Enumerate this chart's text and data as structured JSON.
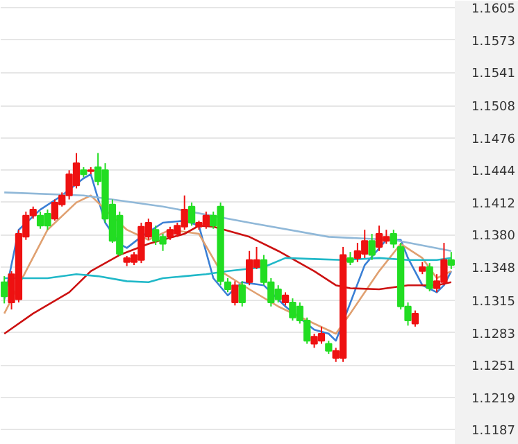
{
  "chart_data": {
    "type": "candlestick",
    "categories": [
      null,
      null,
      null,
      null,
      null,
      null,
      null,
      null,
      null,
      null,
      null,
      null,
      null,
      null,
      null,
      null,
      null,
      null,
      null,
      null,
      null,
      null,
      null,
      null,
      null,
      null,
      null,
      null,
      null,
      null,
      null,
      null,
      null,
      null,
      null,
      null,
      null,
      null,
      null,
      null,
      null,
      null,
      null,
      null,
      null,
      null,
      null,
      null,
      null,
      null,
      null,
      null,
      null,
      null,
      null,
      null,
      null,
      null,
      null,
      null,
      null,
      null,
      null
    ],
    "ohlc": [
      [
        1.1333,
        1.1339,
        1.1312,
        1.1319
      ],
      [
        1.1313,
        1.1344,
        1.1306,
        1.1341
      ],
      [
        1.1316,
        1.1385,
        1.1313,
        1.1381
      ],
      [
        1.1378,
        1.1403,
        1.1375,
        1.1399
      ],
      [
        1.1399,
        1.1408,
        1.1396,
        1.1405
      ],
      [
        1.1399,
        1.1403,
        1.1386,
        1.1389
      ],
      [
        1.1401,
        1.1405,
        1.1385,
        1.1389
      ],
      [
        1.1396,
        1.1415,
        1.1394,
        1.1412
      ],
      [
        1.141,
        1.1422,
        1.1408,
        1.1419
      ],
      [
        1.1419,
        1.1444,
        1.1415,
        1.144
      ],
      [
        1.1429,
        1.1461,
        1.1426,
        1.1451
      ],
      [
        1.1444,
        1.1447,
        1.1437,
        1.144
      ],
      [
        1.1443,
        1.1447,
        1.144,
        1.1444
      ],
      [
        1.1447,
        1.1461,
        1.1429,
        1.1433
      ],
      [
        1.1444,
        1.1451,
        1.1392,
        1.1396
      ],
      [
        1.141,
        1.1415,
        1.1372,
        1.1374
      ],
      [
        1.1399,
        1.1403,
        1.1359,
        1.1361
      ],
      [
        1.1353,
        1.1359,
        1.1349,
        1.1357
      ],
      [
        1.1353,
        1.1363,
        1.135,
        1.136
      ],
      [
        1.1355,
        1.1392,
        1.1352,
        1.1388
      ],
      [
        1.1378,
        1.1396,
        1.1375,
        1.1392
      ],
      [
        1.1385,
        1.1389,
        1.137,
        1.1374
      ],
      [
        1.1378,
        1.1381,
        1.1364,
        1.1371
      ],
      [
        1.1378,
        1.1388,
        1.1375,
        1.1385
      ],
      [
        1.1381,
        1.1392,
        1.1378,
        1.1389
      ],
      [
        1.1388,
        1.1419,
        1.1385,
        1.1405
      ],
      [
        1.1408,
        1.1412,
        1.1389,
        1.1392
      ],
      [
        1.1388,
        1.1394,
        1.1385,
        1.1392
      ],
      [
        1.1389,
        1.1403,
        1.1386,
        1.1399
      ],
      [
        1.1399,
        1.1403,
        1.1386,
        1.1389
      ],
      [
        1.1408,
        1.1412,
        1.133,
        1.1334
      ],
      [
        1.1333,
        1.1337,
        1.1323,
        1.1326
      ],
      [
        1.1313,
        1.1334,
        1.131,
        1.133
      ],
      [
        1.133,
        1.1334,
        1.1309,
        1.1313
      ],
      [
        1.1333,
        1.1364,
        1.133,
        1.1355
      ],
      [
        1.1348,
        1.1368,
        1.1346,
        1.1355
      ],
      [
        1.1355,
        1.136,
        1.133,
        1.1333
      ],
      [
        1.1333,
        1.1337,
        1.1309,
        1.1313
      ],
      [
        1.1326,
        1.133,
        1.1313,
        1.1316
      ],
      [
        1.1313,
        1.1323,
        1.131,
        1.132
      ],
      [
        1.1313,
        1.1317,
        1.1295,
        1.1298
      ],
      [
        1.1309,
        1.1313,
        1.1292,
        1.1295
      ],
      [
        1.1295,
        1.1298,
        1.1272,
        1.1275
      ],
      [
        1.1272,
        1.1282,
        1.1268,
        1.1279
      ],
      [
        1.1275,
        1.1289,
        1.1272,
        1.1282
      ],
      [
        1.1272,
        1.1275,
        1.1262,
        1.1265
      ],
      [
        1.1258,
        1.1268,
        1.1254,
        1.1265
      ],
      [
        1.1258,
        1.1368,
        1.1254,
        1.136
      ],
      [
        1.1357,
        1.1363,
        1.135,
        1.1353
      ],
      [
        1.1357,
        1.1372,
        1.1353,
        1.1364
      ],
      [
        1.1361,
        1.1385,
        1.1357,
        1.1374
      ],
      [
        1.1374,
        1.1381,
        1.1355,
        1.136
      ],
      [
        1.1368,
        1.1389,
        1.1364,
        1.1381
      ],
      [
        1.1374,
        1.1385,
        1.1371,
        1.1378
      ],
      [
        1.1381,
        1.1385,
        1.1367,
        1.1371
      ],
      [
        1.1368,
        1.1372,
        1.1306,
        1.1309
      ],
      [
        1.1309,
        1.1313,
        1.129,
        1.1295
      ],
      [
        1.1292,
        1.1305,
        1.1289,
        1.1302
      ],
      [
        1.1344,
        1.1353,
        1.1341,
        1.1348
      ],
      [
        1.1348,
        1.1352,
        1.1324,
        1.1327
      ],
      [
        1.1327,
        1.1341,
        1.1323,
        1.1334
      ],
      [
        1.1333,
        1.1372,
        1.133,
        1.1355
      ],
      [
        1.1355,
        1.1363,
        1.1346,
        1.135
      ]
    ],
    "colors": [
      "#22dd22",
      "#ee1111",
      "#ee1111",
      "#ee1111",
      "#ee1111",
      "#22dd22",
      "#22dd22",
      "#ee1111",
      "#ee1111",
      "#ee1111",
      "#ee1111",
      "#22dd22",
      "#ee1111",
      "#22dd22",
      "#22dd22",
      "#22dd22",
      "#22dd22",
      "#ee1111",
      "#ee1111",
      "#ee1111",
      "#ee1111",
      "#22dd22",
      "#22dd22",
      "#ee1111",
      "#ee1111",
      "#ee1111",
      "#22dd22",
      "#ee1111",
      "#ee1111",
      "#22dd22",
      "#22dd22",
      "#22dd22",
      "#ee1111",
      "#22dd22",
      "#ee1111",
      "#ee1111",
      "#22dd22",
      "#22dd22",
      "#22dd22",
      "#ee1111",
      "#22dd22",
      "#22dd22",
      "#22dd22",
      "#ee1111",
      "#ee1111",
      "#22dd22",
      "#ee1111",
      "#ee1111",
      "#22dd22",
      "#ee1111",
      "#ee1111",
      "#22dd22",
      "#ee1111",
      "#ee1111",
      "#22dd22",
      "#22dd22",
      "#22dd22",
      "#ee1111",
      "#ee1111",
      "#22dd22",
      "#ee1111",
      "#ee1111",
      "#22dd22"
    ],
    "series": [
      {
        "type": "line",
        "color": "#3a7fd5",
        "values": [
          1.1316,
          null,
          1.1385,
          null,
          null,
          1.1405,
          null,
          null,
          1.1419,
          null,
          null,
          1.1436,
          1.144,
          null,
          1.1392,
          null,
          1.1371,
          1.1367,
          null,
          1.1378,
          null,
          null,
          1.1392,
          null,
          null,
          1.1394,
          null,
          1.1389,
          null,
          1.1337,
          null,
          1.132,
          null,
          1.1333,
          null,
          null,
          1.133,
          null,
          null,
          1.1309,
          null,
          null,
          null,
          1.1286,
          null,
          1.1282,
          1.1275,
          null,
          null,
          null,
          1.135,
          null,
          null,
          1.1375,
          null,
          1.1375,
          1.1357,
          null,
          1.133,
          null,
          1.1323,
          1.133,
          1.1344
        ]
      },
      {
        "type": "line",
        "color": "#e0a070",
        "values": [
          1.1302,
          null,
          null,
          1.1344,
          null,
          null,
          1.1385,
          null,
          null,
          null,
          1.1412,
          null,
          1.1419,
          null,
          1.1405,
          null,
          null,
          1.1385,
          null,
          null,
          1.1375,
          null,
          null,
          1.1385,
          null,
          null,
          null,
          1.1381,
          null,
          null,
          1.1344,
          null,
          null,
          null,
          1.1326,
          null,
          null,
          null,
          1.1309,
          null,
          null,
          null,
          null,
          1.1292,
          null,
          null,
          1.1282,
          null,
          1.1302,
          null,
          null,
          null,
          1.1344,
          null,
          null,
          1.1371,
          null,
          null,
          1.1357,
          null,
          1.1337,
          null,
          1.1344
        ]
      },
      {
        "type": "line",
        "color": "#cc1111",
        "values": [
          1.1282,
          null,
          null,
          null,
          1.1302,
          null,
          null,
          null,
          null,
          1.1323,
          null,
          null,
          1.1344,
          null,
          null,
          null,
          1.136,
          null,
          null,
          null,
          1.1371,
          null,
          null,
          null,
          null,
          1.1381,
          null,
          1.1389,
          null,
          1.1388,
          null,
          null,
          null,
          null,
          1.1378,
          null,
          null,
          null,
          1.1364,
          null,
          null,
          null,
          null,
          1.1344,
          null,
          null,
          1.133,
          null,
          1.1327,
          null,
          null,
          null,
          1.1326,
          null,
          null,
          null,
          1.133,
          null,
          null,
          null,
          1.133,
          null,
          1.1333
        ]
      },
      {
        "type": "line",
        "color": "#20b8c8",
        "values": [
          1.1337,
          null,
          null,
          null,
          null,
          null,
          1.1337,
          null,
          null,
          null,
          1.1341,
          null,
          null,
          1.1339,
          null,
          null,
          null,
          1.1334,
          null,
          null,
          1.1333,
          null,
          1.1337,
          null,
          null,
          1.1339,
          null,
          null,
          1.1341,
          null,
          null,
          1.1344,
          null,
          null,
          null,
          null,
          1.1348,
          null,
          null,
          1.1357,
          null,
          null,
          null,
          1.1356,
          null,
          null,
          null,
          1.1355,
          null,
          null,
          null,
          null,
          1.1357,
          null,
          null,
          null,
          1.1355,
          null,
          null,
          null,
          1.1355,
          null,
          1.1357
        ]
      },
      {
        "type": "line",
        "color": "#90b8d8",
        "values": [
          1.1422,
          null,
          null,
          null,
          null,
          null,
          null,
          null,
          null,
          null,
          null,
          1.1419,
          null,
          null,
          null,
          null,
          null,
          null,
          null,
          null,
          null,
          null,
          1.1408,
          null,
          null,
          null,
          null,
          null,
          null,
          null,
          null,
          null,
          null,
          null,
          1.1392,
          null,
          null,
          null,
          null,
          null,
          null,
          null,
          null,
          null,
          null,
          1.1378,
          null,
          null,
          null,
          null,
          null,
          null,
          null,
          null,
          1.1375,
          null,
          null,
          null,
          null,
          null,
          null,
          null,
          1.1364
        ]
      }
    ],
    "ylim": [
      1.1172,
      1.1612
    ],
    "yticks": [
      1.1605,
      1.1573,
      1.1541,
      1.1508,
      1.1476,
      1.1444,
      1.1412,
      {
        "value": 1.138,
        "label": "1.1380"
      },
      1.1348,
      1.1315,
      1.1283,
      1.1251,
      1.1219,
      1.1187
    ],
    "grid": "y"
  }
}
